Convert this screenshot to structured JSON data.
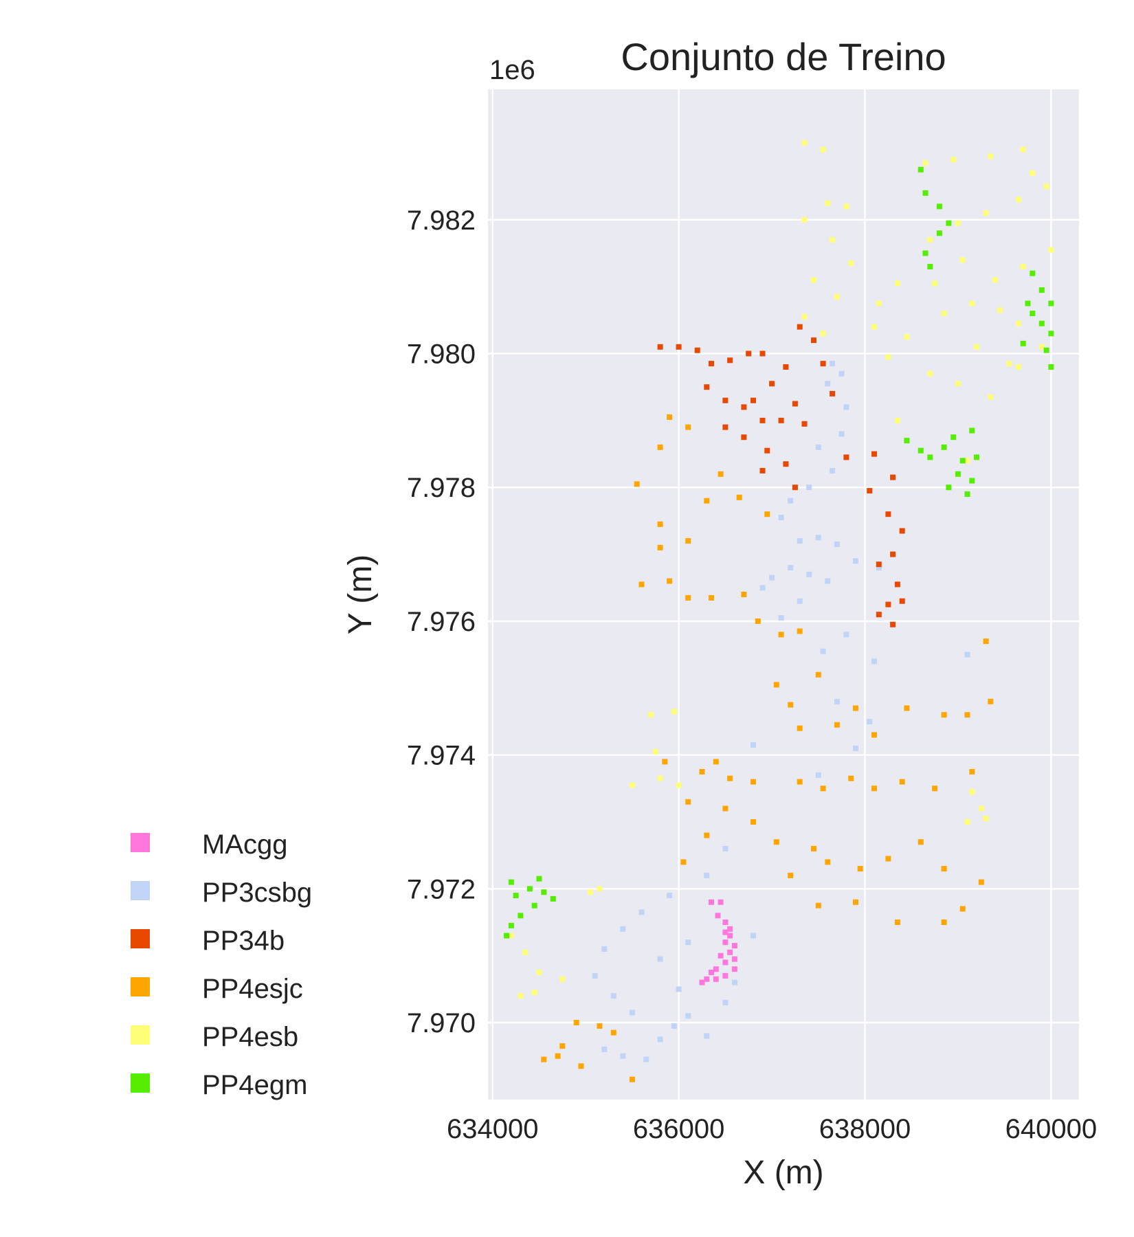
{
  "chart_data": {
    "type": "scatter",
    "title": "Conjunto de Treino",
    "xlabel": "X (m)",
    "ylabel": "Y (m)",
    "y_offset_label": "1e6",
    "xlim": [
      633950,
      640300
    ],
    "ylim": [
      7968850,
      7983950
    ],
    "x_ticks": [
      634000,
      636000,
      638000,
      640000
    ],
    "x_tick_labels": [
      "634000",
      "636000",
      "638000",
      "640000"
    ],
    "y_ticks": [
      7970000,
      7972000,
      7974000,
      7976000,
      7978000,
      7980000,
      7982000
    ],
    "y_tick_labels": [
      "7.970",
      "7.972",
      "7.974",
      "7.976",
      "7.978",
      "7.980",
      "7.982"
    ],
    "grid": true,
    "background": "#eaeaf2",
    "legend_position": "lower-left-outside",
    "series": [
      {
        "name": "MAcgg",
        "color": "#ff77dd",
        "points": [
          [
            636350,
            7971800
          ],
          [
            636450,
            7971800
          ],
          [
            636420,
            7971600
          ],
          [
            636500,
            7971500
          ],
          [
            636500,
            7971350
          ],
          [
            636550,
            7971400
          ],
          [
            636500,
            7971200
          ],
          [
            636550,
            7971050
          ],
          [
            636600,
            7970950
          ],
          [
            636500,
            7970900
          ],
          [
            636400,
            7970800
          ],
          [
            636350,
            7970750
          ],
          [
            636300,
            7970650
          ],
          [
            636250,
            7970600
          ],
          [
            636400,
            7970650
          ],
          [
            636500,
            7970700
          ],
          [
            636600,
            7970800
          ],
          [
            636450,
            7971000
          ],
          [
            636600,
            7971150
          ],
          [
            636550,
            7971300
          ]
        ]
      },
      {
        "name": "PP3csbg",
        "color": "#c0d4f7",
        "points": [
          [
            637650,
            7979850
          ],
          [
            637600,
            7979550
          ],
          [
            637800,
            7979200
          ],
          [
            637750,
            7978800
          ],
          [
            637500,
            7978600
          ],
          [
            637650,
            7978250
          ],
          [
            637400,
            7978000
          ],
          [
            637200,
            7977800
          ],
          [
            637100,
            7977550
          ],
          [
            637300,
            7977200
          ],
          [
            637500,
            7977250
          ],
          [
            637700,
            7977150
          ],
          [
            637900,
            7976900
          ],
          [
            637600,
            7976600
          ],
          [
            637400,
            7976700
          ],
          [
            637200,
            7976800
          ],
          [
            637000,
            7976650
          ],
          [
            636900,
            7976500
          ],
          [
            637300,
            7976300
          ],
          [
            637100,
            7976050
          ],
          [
            637800,
            7975800
          ],
          [
            637550,
            7975550
          ],
          [
            638100,
            7975400
          ],
          [
            639100,
            7975500
          ],
          [
            637700,
            7974800
          ],
          [
            638050,
            7974500
          ],
          [
            637900,
            7974100
          ],
          [
            636800,
            7974150
          ],
          [
            637500,
            7973700
          ],
          [
            636500,
            7972600
          ],
          [
            636300,
            7972200
          ],
          [
            635900,
            7971900
          ],
          [
            635600,
            7971650
          ],
          [
            635400,
            7971400
          ],
          [
            635200,
            7971100
          ],
          [
            635100,
            7970700
          ],
          [
            635300,
            7970400
          ],
          [
            635500,
            7970150
          ],
          [
            635200,
            7969600
          ],
          [
            635400,
            7969500
          ],
          [
            635650,
            7969450
          ],
          [
            635800,
            7969750
          ],
          [
            635950,
            7969950
          ],
          [
            636100,
            7970100
          ],
          [
            636300,
            7969800
          ],
          [
            636500,
            7970300
          ],
          [
            636600,
            7970600
          ],
          [
            636800,
            7971300
          ],
          [
            636100,
            7971200
          ],
          [
            635800,
            7970950
          ],
          [
            636000,
            7970500
          ],
          [
            638150,
            7976800
          ],
          [
            637750,
            7979700
          ]
        ]
      },
      {
        "name": "PP34b",
        "color": "#e84800",
        "points": [
          [
            635800,
            7980100
          ],
          [
            636000,
            7980100
          ],
          [
            636200,
            7980050
          ],
          [
            636350,
            7979850
          ],
          [
            636550,
            7979900
          ],
          [
            636750,
            7980000
          ],
          [
            636900,
            7980000
          ],
          [
            637150,
            7979800
          ],
          [
            637300,
            7980400
          ],
          [
            637450,
            7980200
          ],
          [
            636300,
            7979500
          ],
          [
            636500,
            7979300
          ],
          [
            636700,
            7979200
          ],
          [
            636900,
            7979000
          ],
          [
            637100,
            7979000
          ],
          [
            637350,
            7978950
          ],
          [
            636500,
            7978900
          ],
          [
            636700,
            7978750
          ],
          [
            636950,
            7978550
          ],
          [
            637150,
            7978350
          ],
          [
            636900,
            7978250
          ],
          [
            637250,
            7978000
          ],
          [
            637650,
            7979400
          ],
          [
            637800,
            7978450
          ],
          [
            638100,
            7978500
          ],
          [
            638300,
            7978150
          ],
          [
            638050,
            7977950
          ],
          [
            638250,
            7977600
          ],
          [
            638400,
            7977350
          ],
          [
            638300,
            7977000
          ],
          [
            638150,
            7976850
          ],
          [
            638350,
            7976550
          ],
          [
            638250,
            7976250
          ],
          [
            638400,
            7976300
          ],
          [
            638150,
            7976100
          ],
          [
            638300,
            7975950
          ],
          [
            637000,
            7979550
          ],
          [
            636800,
            7979300
          ],
          [
            637250,
            7979250
          ],
          [
            637550,
            7979850
          ]
        ]
      },
      {
        "name": "PP4esjc",
        "color": "#ffa500",
        "points": [
          [
            635800,
            7978600
          ],
          [
            635900,
            7979050
          ],
          [
            636100,
            7978900
          ],
          [
            635550,
            7978050
          ],
          [
            635800,
            7977450
          ],
          [
            636300,
            7977800
          ],
          [
            636450,
            7978200
          ],
          [
            636650,
            7977850
          ],
          [
            636950,
            7977600
          ],
          [
            636100,
            7977200
          ],
          [
            635800,
            7977100
          ],
          [
            635900,
            7976600
          ],
          [
            635600,
            7976550
          ],
          [
            636100,
            7976350
          ],
          [
            636350,
            7976350
          ],
          [
            636700,
            7976400
          ],
          [
            636850,
            7976000
          ],
          [
            637100,
            7975800
          ],
          [
            637300,
            7975850
          ],
          [
            637500,
            7975200
          ],
          [
            637200,
            7974750
          ],
          [
            637900,
            7974700
          ],
          [
            638450,
            7974700
          ],
          [
            638850,
            7974600
          ],
          [
            639350,
            7974800
          ],
          [
            635850,
            7973900
          ],
          [
            636250,
            7973750
          ],
          [
            636400,
            7973900
          ],
          [
            636550,
            7973650
          ],
          [
            636800,
            7973600
          ],
          [
            637300,
            7973600
          ],
          [
            637550,
            7973500
          ],
          [
            637850,
            7973650
          ],
          [
            638100,
            7973500
          ],
          [
            638400,
            7973600
          ],
          [
            638750,
            7973500
          ],
          [
            639150,
            7973750
          ],
          [
            636100,
            7973300
          ],
          [
            636500,
            7973200
          ],
          [
            636800,
            7973000
          ],
          [
            637050,
            7972700
          ],
          [
            637450,
            7972600
          ],
          [
            637600,
            7972400
          ],
          [
            637950,
            7972300
          ],
          [
            638250,
            7972450
          ],
          [
            638600,
            7972700
          ],
          [
            638850,
            7972300
          ],
          [
            639250,
            7972100
          ],
          [
            636050,
            7972400
          ],
          [
            636300,
            7972800
          ],
          [
            637200,
            7972200
          ],
          [
            637500,
            7971750
          ],
          [
            637900,
            7971800
          ],
          [
            638350,
            7971500
          ],
          [
            638850,
            7971500
          ],
          [
            639050,
            7971700
          ],
          [
            634900,
            7970000
          ],
          [
            635150,
            7969950
          ],
          [
            635300,
            7969850
          ],
          [
            634750,
            7969650
          ],
          [
            634950,
            7969350
          ],
          [
            635500,
            7969150
          ],
          [
            634700,
            7969500
          ],
          [
            634550,
            7969450
          ],
          [
            637050,
            7975050
          ],
          [
            637300,
            7974400
          ],
          [
            637700,
            7974450
          ],
          [
            638100,
            7974300
          ],
          [
            639100,
            7974600
          ],
          [
            639300,
            7975700
          ]
        ]
      },
      {
        "name": "PP4esb",
        "color": "#ffff77",
        "points": [
          [
            637350,
            7983150
          ],
          [
            637550,
            7983050
          ],
          [
            637350,
            7982000
          ],
          [
            637600,
            7982250
          ],
          [
            637800,
            7982200
          ],
          [
            637650,
            7981700
          ],
          [
            637850,
            7981350
          ],
          [
            637450,
            7981100
          ],
          [
            637700,
            7980850
          ],
          [
            637350,
            7980550
          ],
          [
            637550,
            7980300
          ],
          [
            638100,
            7980400
          ],
          [
            638450,
            7980250
          ],
          [
            638850,
            7980600
          ],
          [
            639150,
            7980750
          ],
          [
            639450,
            7980650
          ],
          [
            639650,
            7980450
          ],
          [
            638250,
            7979950
          ],
          [
            638700,
            7979700
          ],
          [
            639000,
            7979550
          ],
          [
            639350,
            7979350
          ],
          [
            639650,
            7979800
          ],
          [
            639900,
            7980100
          ],
          [
            638350,
            7979000
          ],
          [
            639100,
            7978400
          ],
          [
            638650,
            7982850
          ],
          [
            638950,
            7982900
          ],
          [
            639350,
            7982950
          ],
          [
            639700,
            7983050
          ],
          [
            639800,
            7982700
          ],
          [
            639950,
            7982500
          ],
          [
            639650,
            7982300
          ],
          [
            639300,
            7982100
          ],
          [
            639000,
            7981950
          ],
          [
            638700,
            7981700
          ],
          [
            639050,
            7981400
          ],
          [
            639400,
            7981100
          ],
          [
            639700,
            7981300
          ],
          [
            640000,
            7981550
          ],
          [
            639200,
            7980100
          ],
          [
            639550,
            7979850
          ],
          [
            638350,
            7981050
          ],
          [
            638150,
            7980750
          ],
          [
            634200,
            7971300
          ],
          [
            634350,
            7971050
          ],
          [
            634500,
            7970750
          ],
          [
            634450,
            7970450
          ],
          [
            634300,
            7970400
          ],
          [
            634750,
            7970650
          ],
          [
            635050,
            7971950
          ],
          [
            635150,
            7972000
          ],
          [
            635700,
            7974600
          ],
          [
            635950,
            7974650
          ],
          [
            635750,
            7974050
          ],
          [
            635800,
            7973650
          ],
          [
            636000,
            7973550
          ],
          [
            639150,
            7973450
          ],
          [
            639250,
            7973200
          ],
          [
            639100,
            7973000
          ],
          [
            635500,
            7973550
          ],
          [
            639300,
            7973050
          ],
          [
            638750,
            7981050
          ]
        ]
      },
      {
        "name": "PP4egm",
        "color": "#55ee00",
        "points": [
          [
            638600,
            7982750
          ],
          [
            638650,
            7982400
          ],
          [
            638800,
            7982200
          ],
          [
            638900,
            7981950
          ],
          [
            638800,
            7981800
          ],
          [
            638650,
            7981500
          ],
          [
            638700,
            7981300
          ],
          [
            639800,
            7981200
          ],
          [
            639900,
            7980950
          ],
          [
            640000,
            7980750
          ],
          [
            639750,
            7980750
          ],
          [
            639900,
            7980450
          ],
          [
            640000,
            7980300
          ],
          [
            639950,
            7980050
          ],
          [
            640000,
            7979800
          ],
          [
            638450,
            7978700
          ],
          [
            638600,
            7978550
          ],
          [
            638700,
            7978450
          ],
          [
            638850,
            7978600
          ],
          [
            638950,
            7978750
          ],
          [
            639050,
            7978400
          ],
          [
            639200,
            7978450
          ],
          [
            639150,
            7978850
          ],
          [
            639000,
            7978200
          ],
          [
            639150,
            7978100
          ],
          [
            638900,
            7978000
          ],
          [
            639100,
            7977900
          ],
          [
            634200,
            7972100
          ],
          [
            634250,
            7971900
          ],
          [
            634400,
            7972000
          ],
          [
            634500,
            7972150
          ],
          [
            634550,
            7971950
          ],
          [
            634450,
            7971750
          ],
          [
            634300,
            7971600
          ],
          [
            634200,
            7971450
          ],
          [
            634150,
            7971300
          ],
          [
            634650,
            7971850
          ],
          [
            639700,
            7980150
          ],
          [
            639800,
            7980600
          ]
        ]
      }
    ]
  }
}
